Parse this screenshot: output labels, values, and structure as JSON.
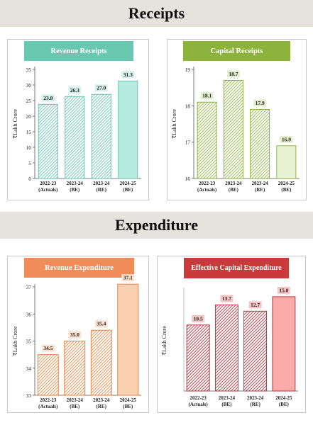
{
  "sections": {
    "receipts": "Receipts",
    "expenditure": "Expenditure"
  },
  "chart_data": [
    {
      "type": "bar",
      "title": "Revenue Receipts",
      "ylabel": "₹Lakh Crore",
      "xlabel": "",
      "categories": [
        [
          "2022-23",
          "(Actuals)"
        ],
        [
          "2023-24",
          "(BE)"
        ],
        [
          "2023-24",
          "(RE)"
        ],
        [
          "2024-25",
          "(BE)"
        ]
      ],
      "values": [
        23.8,
        26.3,
        27.0,
        31.3
      ],
      "labels": [
        "23.8",
        "26.3",
        "27.0",
        "31.3"
      ],
      "ylim": [
        0,
        35
      ],
      "yticks": [
        0,
        5,
        10,
        15,
        20,
        25,
        30,
        35
      ],
      "colors": {
        "title_bg": "#69c9b0",
        "hatch": "#5fc3ab",
        "solid": "#b6ebdf",
        "edge": "#5fbfa7",
        "label_bg": "#d4f1e9"
      },
      "grid": false,
      "legend": "none"
    },
    {
      "type": "bar",
      "title": "Capital Receipts",
      "ylabel": "₹Lakh Crore",
      "xlabel": "",
      "categories": [
        [
          "2022-23",
          "(Actuals)"
        ],
        [
          "2023-24",
          "(BE)"
        ],
        [
          "2023-24",
          "(RE)"
        ],
        [
          "2024-25",
          "(BE)"
        ]
      ],
      "values": [
        18.1,
        18.7,
        17.9,
        16.9
      ],
      "labels": [
        "18.1",
        "18.7",
        "17.9",
        "16.9"
      ],
      "ylim": [
        16,
        19
      ],
      "yticks": [
        16,
        17,
        18,
        19
      ],
      "colors": {
        "title_bg": "#8db33c",
        "hatch": "#8db33c",
        "solid": "#e8f2d4",
        "edge": "#86ac36",
        "label_bg": "#e3efcd"
      },
      "grid": false,
      "legend": "none"
    },
    {
      "type": "bar",
      "title": "Revenue Expenditure",
      "ylabel": "₹Lakh Crore",
      "xlabel": "",
      "categories": [
        [
          "2022-23",
          "(Actuals)"
        ],
        [
          "2023-24",
          "(BE)"
        ],
        [
          "2023-24",
          "(RE)"
        ],
        [
          "2024-25",
          "(BE)"
        ]
      ],
      "values": [
        34.5,
        35.0,
        35.4,
        37.1
      ],
      "labels": [
        "34.5",
        "35.0",
        "35.4",
        "37.1"
      ],
      "ylim": [
        33,
        37
      ],
      "yticks": [
        33,
        34,
        35,
        36,
        37
      ],
      "colors": {
        "title_bg": "#f18b5a",
        "hatch": "#e9843f",
        "solid": "#fbd0b2",
        "edge": "#e27d3d",
        "label_bg": "#fde2cf"
      },
      "grid": false,
      "legend": "none"
    },
    {
      "type": "bar",
      "title": "Effective Capital Expenditure",
      "ylabel": "₹Lakh Crore",
      "xlabel": "",
      "categories": [
        [
          "2022-23",
          "(Actuals)"
        ],
        [
          "2023-24",
          "(BE)"
        ],
        [
          "2023-24",
          "(RE)"
        ],
        [
          "2024-25",
          "(BE)"
        ]
      ],
      "values": [
        10.5,
        13.7,
        12.7,
        15.0
      ],
      "labels": [
        "10.5",
        "13.7",
        "12.7",
        "15.0"
      ],
      "ylim": [
        0,
        16
      ],
      "yticks": [],
      "colors": {
        "title_bg": "#c93a3a",
        "hatch": "#b5262e",
        "solid": "#fbaaaa",
        "edge": "#b5262e",
        "label_bg": "#f6c6c6"
      },
      "grid": false,
      "legend": "none"
    }
  ]
}
